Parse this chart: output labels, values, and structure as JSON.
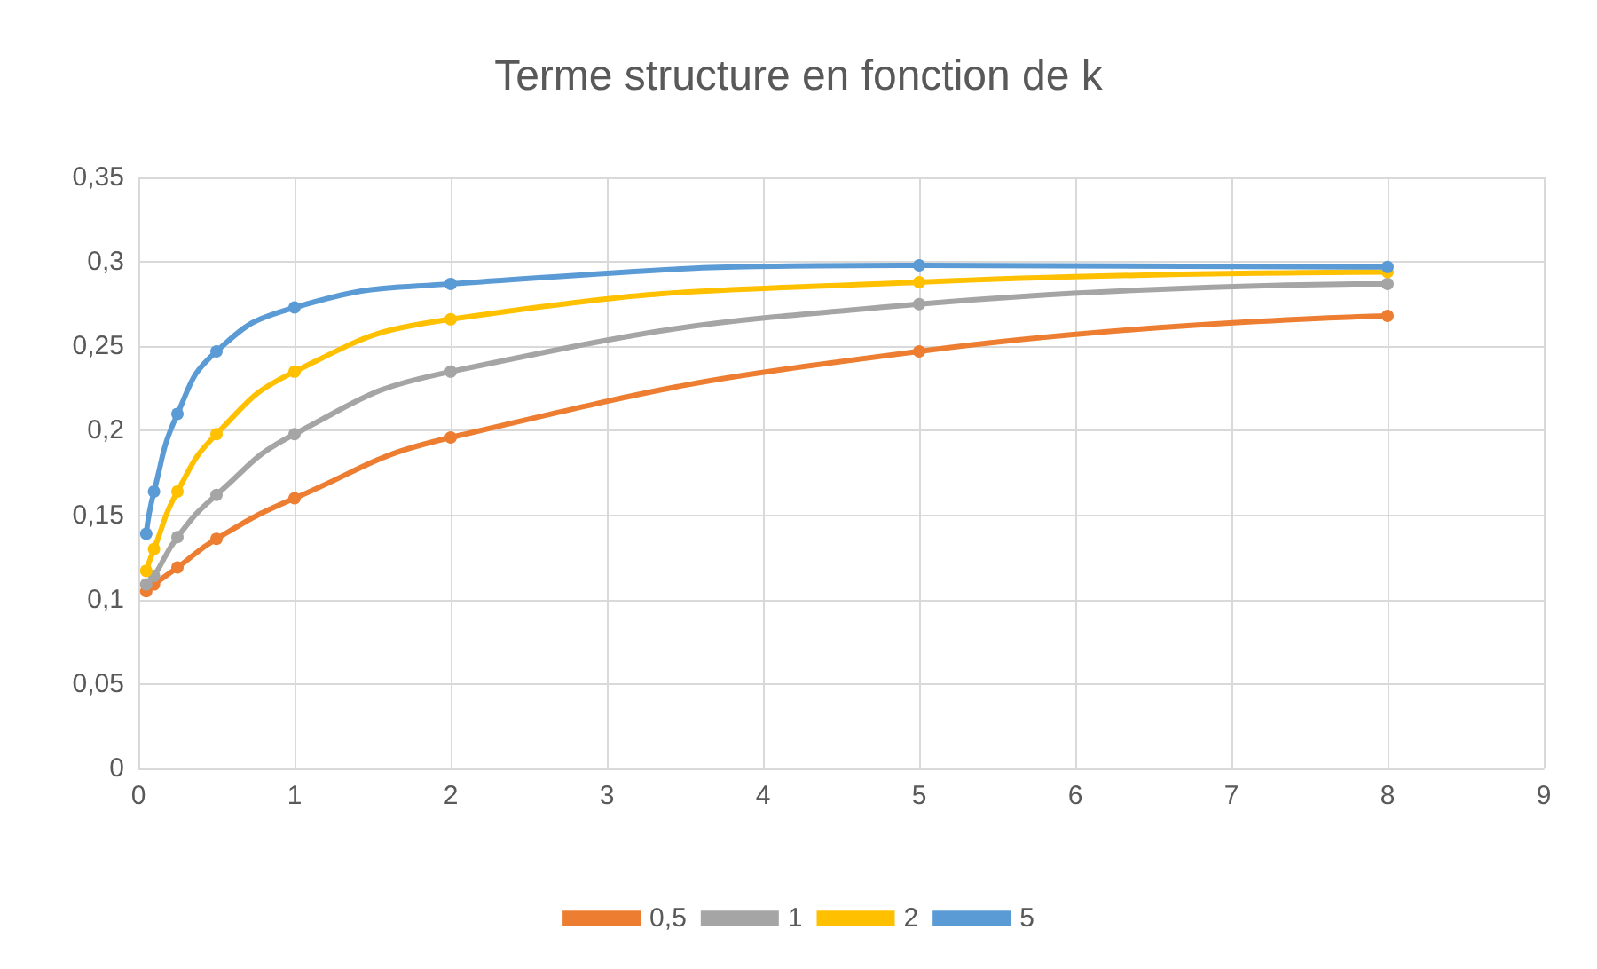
{
  "chart_data": {
    "type": "line",
    "title": "Terme structure en fonction de k",
    "x": [
      0.05,
      0.1,
      0.25,
      0.5,
      1,
      2,
      5,
      8
    ],
    "series": [
      {
        "name": "0,5",
        "color": "#ed7d31",
        "values": [
          0.105,
          0.109,
          0.119,
          0.136,
          0.16,
          0.196,
          0.247,
          0.268
        ]
      },
      {
        "name": "1",
        "color": "#a5a5a5",
        "values": [
          0.109,
          0.114,
          0.137,
          0.162,
          0.198,
          0.235,
          0.275,
          0.287
        ]
      },
      {
        "name": "2",
        "color": "#ffc000",
        "values": [
          0.117,
          0.13,
          0.164,
          0.198,
          0.235,
          0.266,
          0.288,
          0.294
        ]
      },
      {
        "name": "5",
        "color": "#5b9bd5",
        "values": [
          0.139,
          0.164,
          0.21,
          0.247,
          0.273,
          0.287,
          0.298,
          0.297
        ]
      }
    ],
    "xlim": [
      0,
      9
    ],
    "xticks": [
      0,
      1,
      2,
      3,
      4,
      5,
      6,
      7,
      8,
      9
    ],
    "ylim": [
      0,
      0.35
    ],
    "yticks": [
      0,
      {
        "value": 0.05,
        "label": "0,05"
      },
      {
        "value": 0.1,
        "label": "0,1"
      },
      {
        "value": 0.15,
        "label": "0,15"
      },
      {
        "value": 0.2,
        "label": "0,2"
      },
      {
        "value": 0.25,
        "label": "0,25"
      },
      {
        "value": 0.3,
        "label": "0,3"
      },
      {
        "value": 0.35,
        "label": "0,35"
      }
    ],
    "grid": true,
    "legend": "bottom",
    "marker": "circle",
    "line_style": "solid"
  }
}
